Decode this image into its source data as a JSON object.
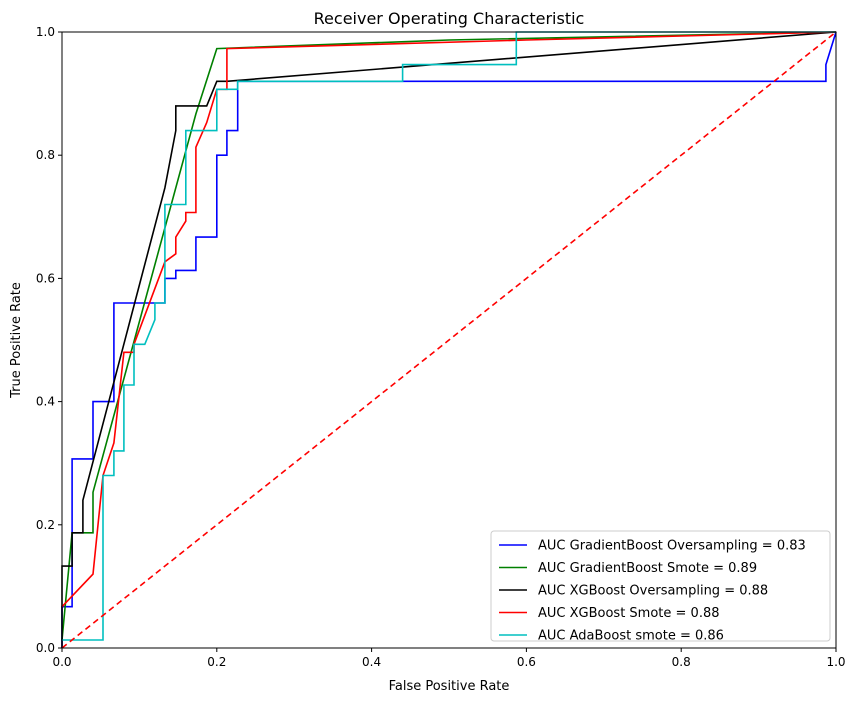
{
  "chart_data": {
    "type": "line",
    "title": "Receiver Operating Characteristic",
    "xlabel": "False Positive Rate",
    "ylabel": "True Positive Rate",
    "xlim": [
      0,
      1
    ],
    "ylim": [
      0,
      1
    ],
    "x_ticks": [
      "0.0",
      "0.2",
      "0.4",
      "0.6",
      "0.8",
      "1.0"
    ],
    "y_ticks": [
      "0.0",
      "0.2",
      "0.4",
      "0.6",
      "0.8",
      "1.0"
    ],
    "grid": false,
    "legend_position": "lower right",
    "series": [
      {
        "name": "AUC GradientBoost Oversampling = 0.83",
        "color": "#0000ff",
        "dash": false,
        "x": [
          0,
          0,
          0.013,
          0.013,
          0.04,
          0.04,
          0.067,
          0.067,
          0.133,
          0.133,
          0.147,
          0.147,
          0.173,
          0.173,
          0.2,
          0.2,
          0.213,
          0.213,
          0.227,
          0.227,
          0.987,
          0.987,
          1.0
        ],
        "y": [
          0,
          0.067,
          0.067,
          0.307,
          0.307,
          0.4,
          0.4,
          0.56,
          0.56,
          0.6,
          0.6,
          0.613,
          0.613,
          0.667,
          0.667,
          0.8,
          0.8,
          0.84,
          0.84,
          0.92,
          0.92,
          0.947,
          1.0
        ]
      },
      {
        "name": "AUC GradientBoost Smote = 0.89",
        "color": "#008000",
        "dash": false,
        "x": [
          0,
          0.013,
          0.04,
          0.04,
          0.173,
          0.2,
          0.5,
          1.0
        ],
        "y": [
          0.013,
          0.187,
          0.187,
          0.253,
          0.867,
          0.973,
          0.987,
          1.0
        ]
      },
      {
        "name": "AUC XGBoost Oversampling = 0.88",
        "color": "#000000",
        "dash": false,
        "x": [
          0,
          0,
          0.013,
          0.013,
          0.027,
          0.027,
          0.133,
          0.147,
          0.147,
          0.187,
          0.2,
          0.2,
          0.213,
          0.213,
          1.0
        ],
        "y": [
          0,
          0.133,
          0.133,
          0.187,
          0.187,
          0.24,
          0.747,
          0.84,
          0.88,
          0.88,
          0.92,
          0.92,
          0.92,
          0.92,
          1.0
        ]
      },
      {
        "name": "AUC XGBoost Smote = 0.88",
        "color": "#ff0000",
        "dash": false,
        "x": [
          0,
          0.04,
          0.053,
          0.067,
          0.08,
          0.093,
          0.093,
          0.133,
          0.147,
          0.147,
          0.16,
          0.16,
          0.173,
          0.173,
          0.187,
          0.2,
          0.213,
          0.213,
          0.6,
          1.0
        ],
        "y": [
          0.067,
          0.12,
          0.28,
          0.333,
          0.48,
          0.48,
          0.493,
          0.627,
          0.64,
          0.667,
          0.693,
          0.707,
          0.707,
          0.813,
          0.853,
          0.907,
          0.907,
          0.973,
          0.987,
          1.0
        ]
      },
      {
        "name": "AUC AdaBoost smote = 0.86",
        "color": "#00bfbf",
        "dash": false,
        "x": [
          0,
          0.053,
          0.053,
          0.067,
          0.067,
          0.08,
          0.08,
          0.093,
          0.093,
          0.107,
          0.12,
          0.12,
          0.133,
          0.133,
          0.16,
          0.16,
          0.2,
          0.2,
          0.227,
          0.227,
          0.44,
          0.44,
          0.587,
          0.587,
          1.0
        ],
        "y": [
          0.013,
          0.013,
          0.28,
          0.28,
          0.32,
          0.32,
          0.427,
          0.427,
          0.493,
          0.493,
          0.533,
          0.56,
          0.56,
          0.72,
          0.72,
          0.84,
          0.84,
          0.907,
          0.907,
          0.92,
          0.92,
          0.947,
          0.947,
          1.0,
          1.0
        ]
      },
      {
        "name": "",
        "color": "#ff0000",
        "dash": true,
        "x": [
          0,
          1
        ],
        "y": [
          0,
          1
        ]
      }
    ]
  }
}
